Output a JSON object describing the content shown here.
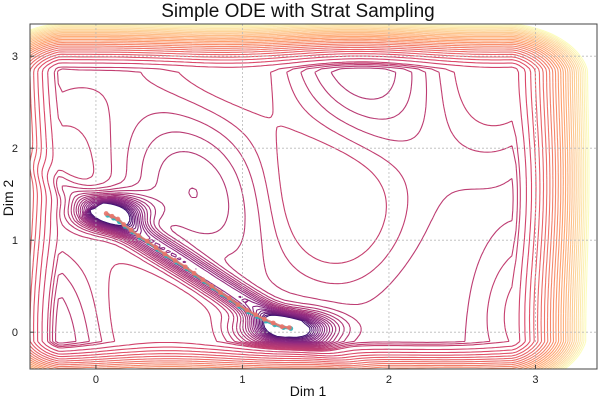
{
  "chart_data": {
    "type": "contour",
    "title": "Simple ODE with Strat Sampling",
    "xlabel": "Dim 1",
    "ylabel": "Dim 2",
    "xlim": [
      -0.45,
      3.42
    ],
    "ylim": [
      -0.4,
      3.35
    ],
    "xticks": [
      0,
      1,
      2,
      3
    ],
    "yticks": [
      0,
      1,
      2,
      3
    ],
    "grid": true,
    "legend": "none",
    "colormap": [
      "#3b0f6f",
      "#8c2981",
      "#de4968",
      "#fe9f6d",
      "#fcfdbf"
    ],
    "minima": [
      {
        "x": 0.1,
        "y": 1.3
      },
      {
        "x": 1.32,
        "y": 0.04
      }
    ],
    "series": [
      {
        "color": "#2ab0b8",
        "x": [
          0.08,
          0.12,
          0.16,
          0.2,
          0.25,
          0.3,
          0.36,
          0.42,
          0.48,
          0.55,
          0.62,
          0.68,
          0.74,
          0.8,
          0.86,
          0.92,
          0.98,
          1.04,
          1.1,
          1.16,
          1.22,
          1.28,
          1.33
        ],
        "y": [
          1.27,
          1.24,
          1.2,
          1.15,
          1.09,
          1.03,
          0.97,
          0.9,
          0.83,
          0.76,
          0.69,
          0.62,
          0.55,
          0.48,
          0.41,
          0.35,
          0.28,
          0.22,
          0.17,
          0.12,
          0.08,
          0.05,
          0.04
        ]
      },
      {
        "color": "#e8746a",
        "x": [
          0.07,
          0.11,
          0.15,
          0.19,
          0.24,
          0.29,
          0.35,
          0.41,
          0.47,
          0.54,
          0.61,
          0.67,
          0.73,
          0.79,
          0.85,
          0.91,
          0.97,
          1.03,
          1.09,
          1.15,
          1.21,
          1.27,
          1.32
        ],
        "y": [
          1.29,
          1.26,
          1.23,
          1.17,
          1.11,
          1.05,
          0.99,
          0.92,
          0.85,
          0.78,
          0.71,
          0.64,
          0.57,
          0.5,
          0.43,
          0.37,
          0.3,
          0.24,
          0.19,
          0.14,
          0.1,
          0.06,
          0.05
        ]
      }
    ]
  }
}
